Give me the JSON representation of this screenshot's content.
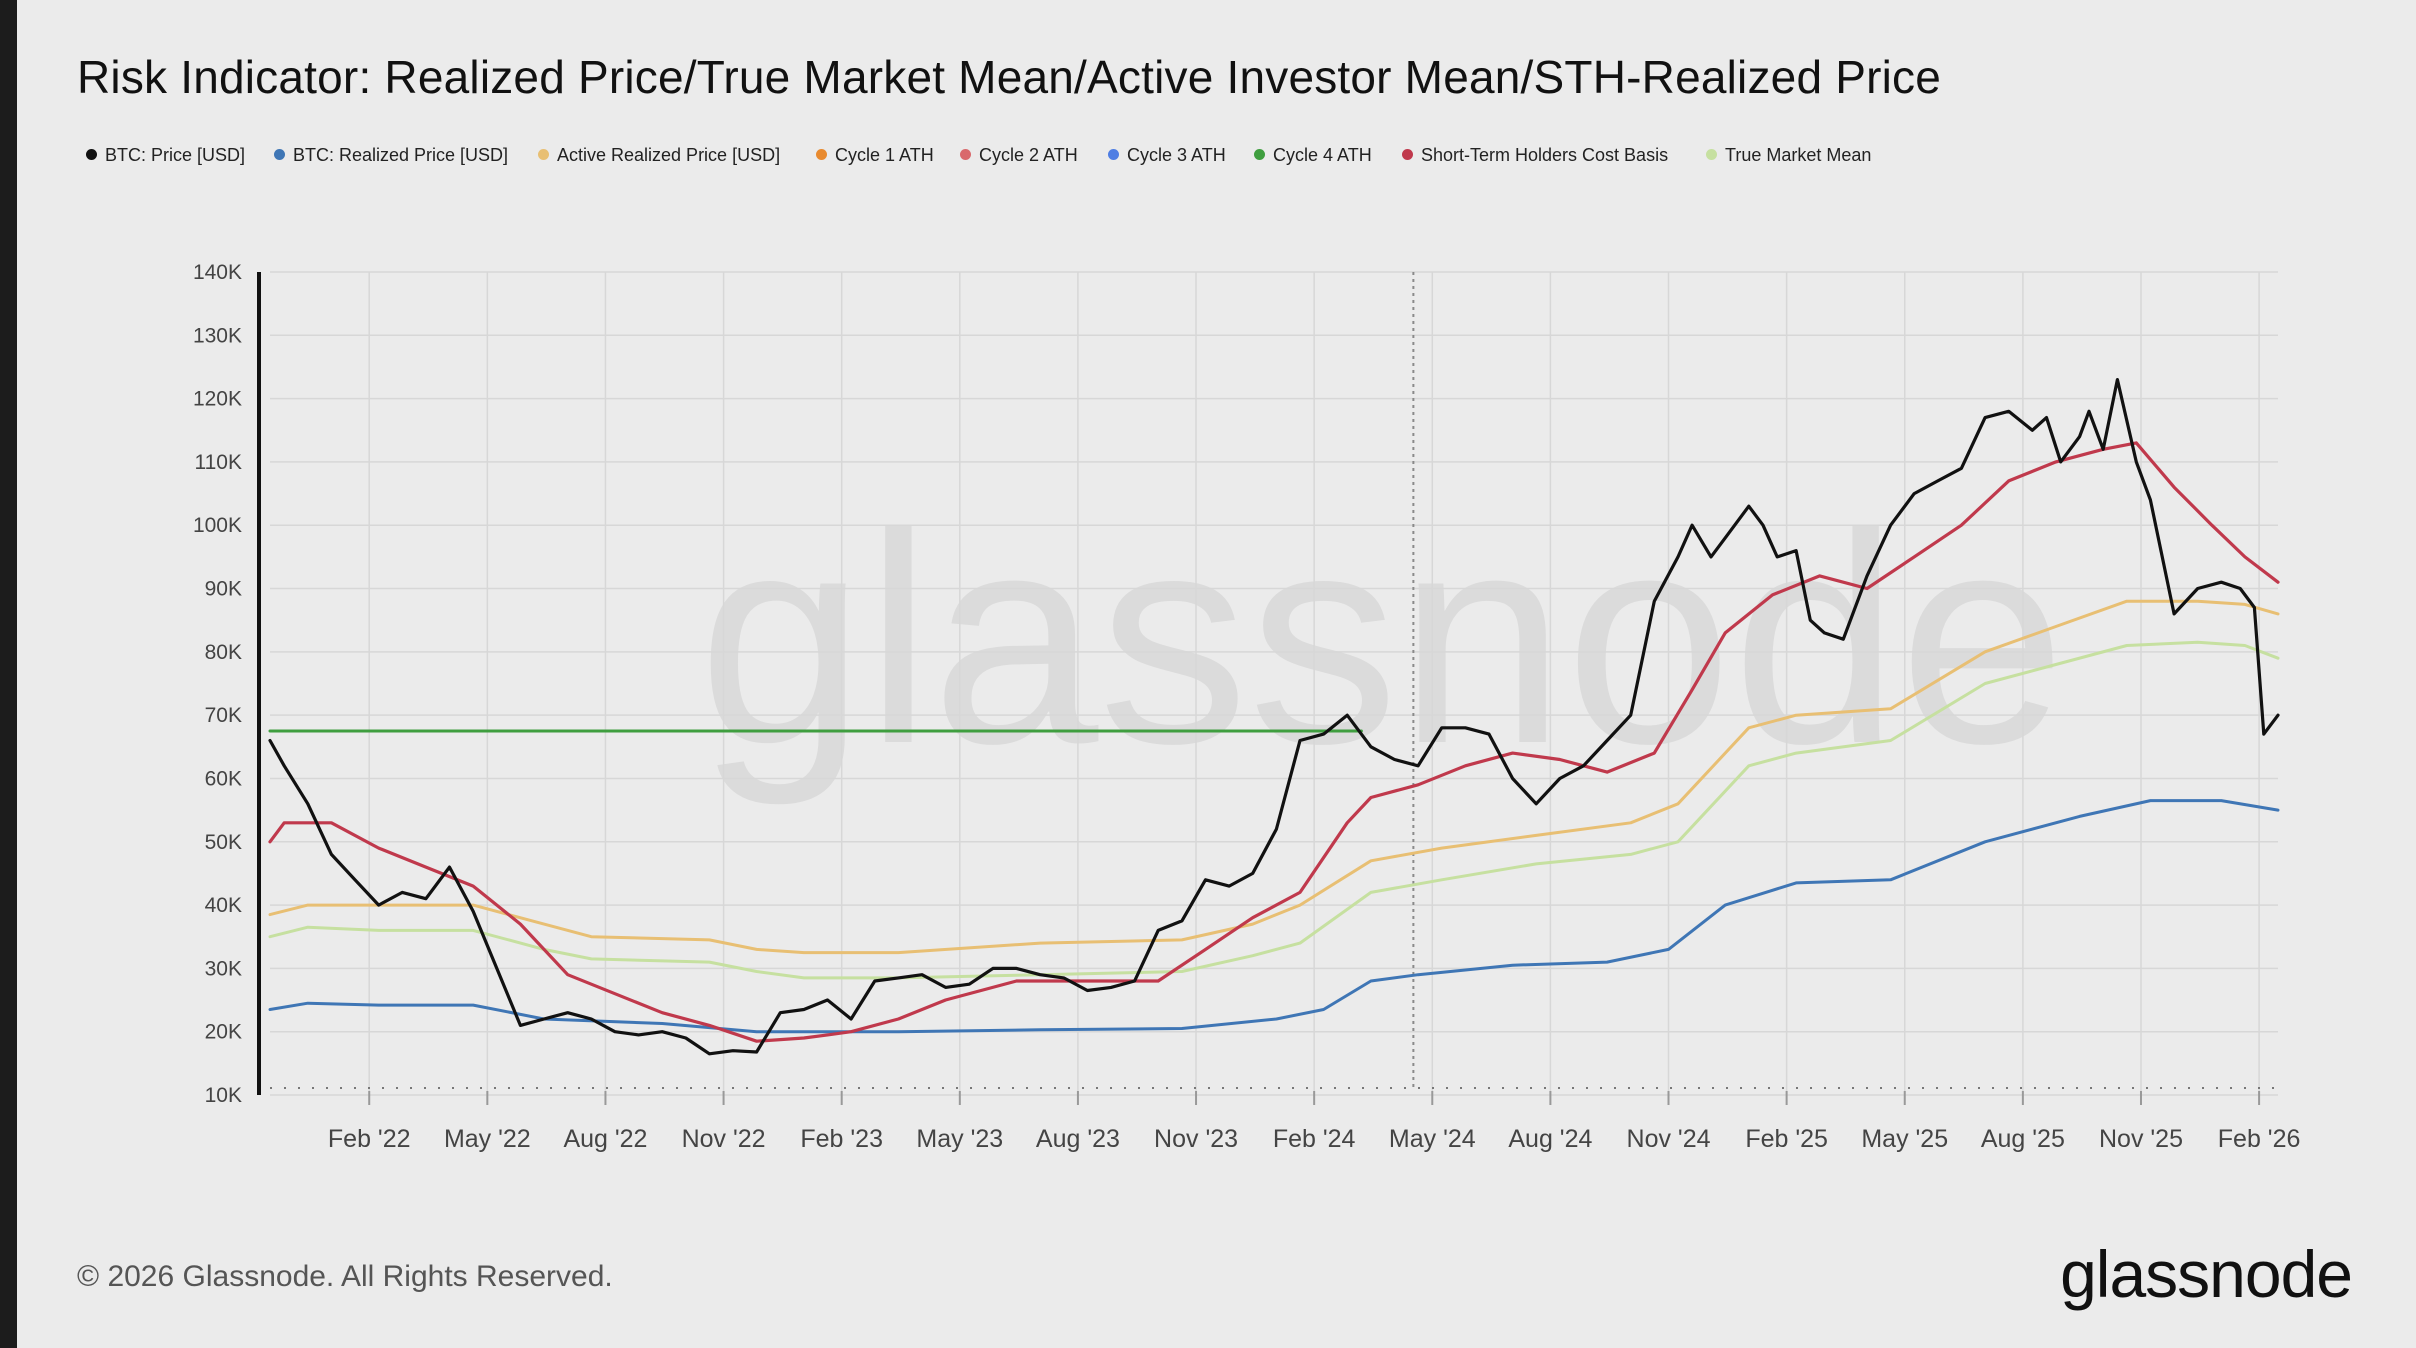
{
  "title": "Risk Indicator: Realized Price/True Market Mean/Active Investor Mean/STH-Realized Price",
  "legend": [
    {
      "label": "BTC: Price [USD]",
      "color": "#111111"
    },
    {
      "label": "BTC: Realized Price [USD]",
      "color": "#3f76b5"
    },
    {
      "label": "Active Realized Price [USD]",
      "color": "#e8bf73"
    },
    {
      "label": "Cycle 1 ATH",
      "color": "#e88a2f"
    },
    {
      "label": "Cycle 2 ATH",
      "color": "#d9696c"
    },
    {
      "label": "Cycle 3 ATH",
      "color": "#4f7ee3"
    },
    {
      "label": "Cycle 4 ATH",
      "color": "#3f9e3f"
    },
    {
      "label": "Short-Term Holders Cost Basis",
      "color": "#c0394c"
    },
    {
      "label": "True Market Mean",
      "color": "#c6e0a0"
    }
  ],
  "watermark": "glassnode",
  "footer": {
    "copyright": "© 2026 Glassnode. All Rights Reserved.",
    "brand": "glassnode"
  },
  "chart_data": {
    "type": "line",
    "title": "Risk Indicator: Realized Price/True Market Mean/Active Investor Mean/STH-Realized Price",
    "xlabel": "",
    "ylabel": "",
    "x_range": [
      2021.87,
      2026.12
    ],
    "ylim": [
      10000,
      140000
    ],
    "grid": true,
    "legend_position": "top-left",
    "y_ticks": [
      10000,
      20000,
      30000,
      40000,
      50000,
      60000,
      70000,
      80000,
      90000,
      100000,
      110000,
      120000,
      130000,
      140000
    ],
    "y_tick_labels": [
      "10K",
      "20K",
      "30K",
      "40K",
      "50K",
      "60K",
      "70K",
      "80K",
      "90K",
      "100K",
      "110K",
      "120K",
      "130K",
      "140K"
    ],
    "x_ticks": [
      {
        "t": 2022.08,
        "label": "Feb '22"
      },
      {
        "t": 2022.33,
        "label": "May '22"
      },
      {
        "t": 2022.58,
        "label": "Aug '22"
      },
      {
        "t": 2022.83,
        "label": "Nov '22"
      },
      {
        "t": 2023.08,
        "label": "Feb '23"
      },
      {
        "t": 2023.33,
        "label": "May '23"
      },
      {
        "t": 2023.58,
        "label": "Aug '23"
      },
      {
        "t": 2023.83,
        "label": "Nov '23"
      },
      {
        "t": 2024.08,
        "label": "Feb '24"
      },
      {
        "t": 2024.33,
        "label": "May '24"
      },
      {
        "t": 2024.58,
        "label": "Aug '24"
      },
      {
        "t": 2024.83,
        "label": "Nov '24"
      },
      {
        "t": 2025.08,
        "label": "Feb '25"
      },
      {
        "t": 2025.33,
        "label": "May '25"
      },
      {
        "t": 2025.58,
        "label": "Aug '25"
      },
      {
        "t": 2025.83,
        "label": "Nov '25"
      },
      {
        "t": 2026.08,
        "label": "Feb '26"
      }
    ],
    "vertical_marker_t": 2024.29,
    "series": [
      {
        "name": "BTC: Price [USD]",
        "color": "#111111",
        "width": 3.2,
        "t": [
          2021.87,
          2021.9,
          2021.95,
          2022.0,
          2022.05,
          2022.1,
          2022.15,
          2022.2,
          2022.25,
          2022.3,
          2022.35,
          2022.4,
          2022.45,
          2022.5,
          2022.55,
          2022.6,
          2022.65,
          2022.7,
          2022.75,
          2022.8,
          2022.85,
          2022.9,
          2022.95,
          2023.0,
          2023.05,
          2023.1,
          2023.15,
          2023.2,
          2023.25,
          2023.3,
          2023.35,
          2023.4,
          2023.45,
          2023.5,
          2023.55,
          2023.6,
          2023.65,
          2023.7,
          2023.75,
          2023.8,
          2023.85,
          2023.9,
          2023.95,
          2024.0,
          2024.05,
          2024.1,
          2024.15,
          2024.2,
          2024.25,
          2024.3,
          2024.35,
          2024.4,
          2024.45,
          2024.5,
          2024.55,
          2024.6,
          2024.65,
          2024.7,
          2024.75,
          2024.8,
          2024.85,
          2024.88,
          2024.92,
          2024.95,
          2025.0,
          2025.03,
          2025.06,
          2025.1,
          2025.13,
          2025.16,
          2025.2,
          2025.25,
          2025.3,
          2025.35,
          2025.4,
          2025.45,
          2025.5,
          2025.55,
          2025.6,
          2025.63,
          2025.66,
          2025.7,
          2025.72,
          2025.75,
          2025.78,
          2025.82,
          2025.85,
          2025.9,
          2025.95,
          2026.0,
          2026.04,
          2026.07,
          2026.09,
          2026.12
        ],
        "values": [
          66000,
          62000,
          56000,
          48000,
          44000,
          40000,
          42000,
          41000,
          46000,
          39000,
          30000,
          21000,
          22000,
          23000,
          22000,
          20000,
          19500,
          20000,
          19000,
          16500,
          17000,
          16800,
          23000,
          23500,
          25000,
          22000,
          28000,
          28500,
          29000,
          27000,
          27500,
          30000,
          30000,
          29000,
          28500,
          26500,
          27000,
          28000,
          36000,
          37500,
          44000,
          43000,
          45000,
          52000,
          66000,
          67000,
          70000,
          65000,
          63000,
          62000,
          68000,
          68000,
          67000,
          60000,
          56000,
          60000,
          62000,
          66000,
          70000,
          88000,
          95000,
          100000,
          95000,
          98000,
          103000,
          100000,
          95000,
          96000,
          85000,
          83000,
          82000,
          92000,
          100000,
          105000,
          107000,
          109000,
          117000,
          118000,
          115000,
          117000,
          110000,
          114000,
          118000,
          112000,
          123000,
          110000,
          104000,
          86000,
          90000,
          91000,
          90000,
          87000,
          67000,
          70000
        ]
      },
      {
        "name": "BTC: Realized Price [USD]",
        "color": "#3f76b5",
        "width": 3,
        "t": [
          2021.87,
          2021.95,
          2022.1,
          2022.3,
          2022.45,
          2022.7,
          2022.9,
          2023.2,
          2023.5,
          2023.8,
          2024.0,
          2024.1,
          2024.2,
          2024.3,
          2024.5,
          2024.7,
          2024.83,
          2024.95,
          2025.1,
          2025.3,
          2025.5,
          2025.7,
          2025.85,
          2026.0,
          2026.12
        ],
        "values": [
          23500,
          24500,
          24200,
          24200,
          22000,
          21300,
          20000,
          20000,
          20300,
          20500,
          22000,
          23500,
          28000,
          29000,
          30500,
          31000,
          33000,
          40000,
          43500,
          44000,
          50000,
          54000,
          56500,
          56500,
          55000
        ]
      },
      {
        "name": "Active Realized Price [USD]",
        "color": "#e8bf73",
        "width": 3,
        "t": [
          2021.87,
          2021.95,
          2022.1,
          2022.3,
          2022.45,
          2022.55,
          2022.8,
          2022.9,
          2023.0,
          2023.2,
          2023.5,
          2023.8,
          2023.95,
          2024.05,
          2024.2,
          2024.35,
          2024.55,
          2024.75,
          2024.85,
          2025.0,
          2025.1,
          2025.3,
          2025.5,
          2025.65,
          2025.8,
          2025.95,
          2026.05,
          2026.12
        ],
        "values": [
          38500,
          40000,
          40000,
          40000,
          37000,
          35000,
          34500,
          33000,
          32500,
          32500,
          34000,
          34500,
          37000,
          40000,
          47000,
          49000,
          51000,
          53000,
          56000,
          68000,
          70000,
          71000,
          80000,
          84000,
          88000,
          88000,
          87500,
          86000
        ]
      },
      {
        "name": "Short-Term Holders Cost Basis",
        "color": "#c0394c",
        "width": 3.2,
        "t": [
          2021.87,
          2021.9,
          2022.0,
          2022.1,
          2022.2,
          2022.3,
          2022.4,
          2022.5,
          2022.6,
          2022.7,
          2022.8,
          2022.9,
          2023.0,
          2023.05,
          2023.1,
          2023.2,
          2023.3,
          2023.45,
          2023.6,
          2023.75,
          2023.85,
          2023.95,
          2024.05,
          2024.15,
          2024.2,
          2024.3,
          2024.4,
          2024.5,
          2024.6,
          2024.7,
          2024.8,
          2024.88,
          2024.95,
          2025.05,
          2025.15,
          2025.25,
          2025.35,
          2025.45,
          2025.55,
          2025.65,
          2025.75,
          2025.82,
          2025.9,
          2025.98,
          2026.05,
          2026.12
        ],
        "values": [
          50000,
          53000,
          53000,
          49000,
          46000,
          43000,
          37000,
          29000,
          26000,
          23000,
          21000,
          18500,
          19000,
          19500,
          20000,
          22000,
          25000,
          28000,
          28000,
          28000,
          33000,
          38000,
          42000,
          53000,
          57000,
          59000,
          62000,
          64000,
          63000,
          61000,
          64000,
          74000,
          83000,
          89000,
          92000,
          90000,
          95000,
          100000,
          107000,
          110000,
          112000,
          113000,
          106000,
          100000,
          95000,
          91000
        ]
      },
      {
        "name": "True Market Mean",
        "color": "#c6e0a0",
        "width": 3,
        "t": [
          2021.87,
          2021.95,
          2022.1,
          2022.3,
          2022.45,
          2022.55,
          2022.8,
          2022.9,
          2023.0,
          2023.2,
          2023.5,
          2023.8,
          2023.95,
          2024.05,
          2024.2,
          2024.35,
          2024.55,
          2024.75,
          2024.85,
          2025.0,
          2025.1,
          2025.3,
          2025.5,
          2025.65,
          2025.8,
          2025.95,
          2026.05,
          2026.12
        ],
        "values": [
          35000,
          36500,
          36000,
          36000,
          33000,
          31500,
          31000,
          29500,
          28500,
          28500,
          29000,
          29500,
          32000,
          34000,
          42000,
          44000,
          46500,
          48000,
          50000,
          62000,
          64000,
          66000,
          75000,
          78000,
          81000,
          81500,
          81000,
          79000
        ]
      },
      {
        "name": "Cycle 4 ATH",
        "color": "#3f9e3f",
        "width": 3,
        "t": [
          2021.87,
          2024.18
        ],
        "values": [
          67500,
          67500
        ]
      }
    ]
  }
}
